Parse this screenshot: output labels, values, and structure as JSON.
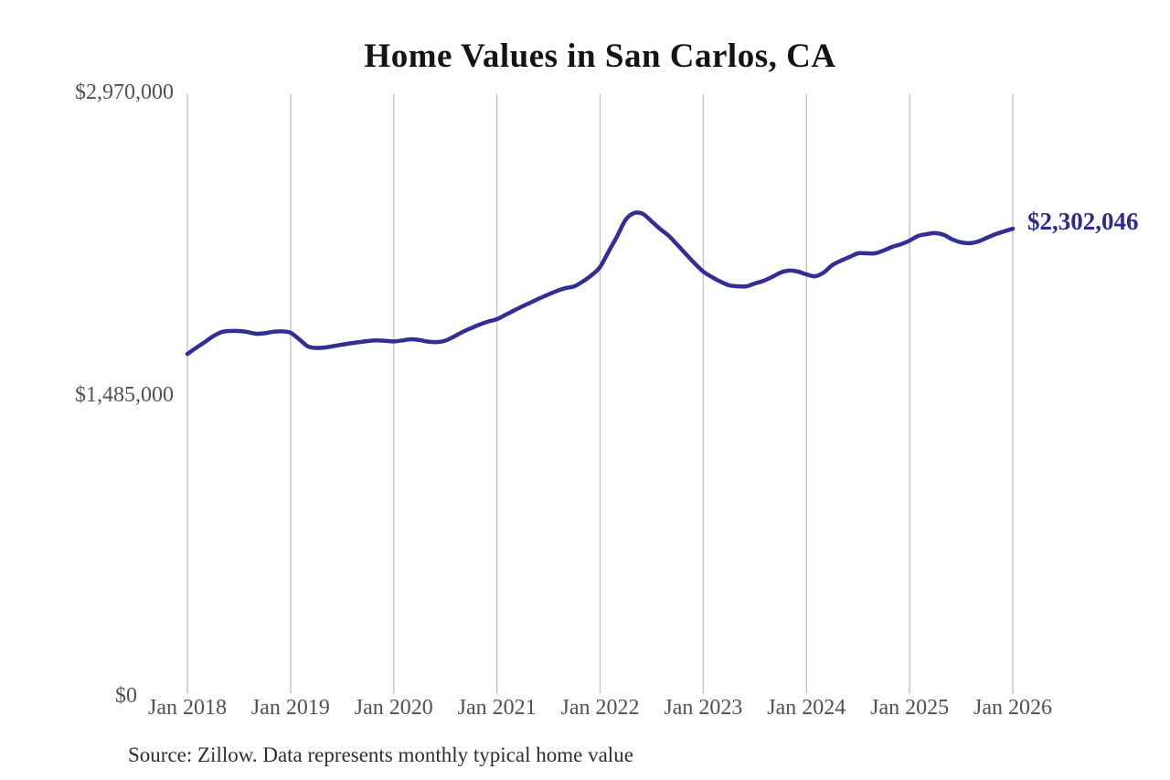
{
  "title": "Home Values in San Carlos, CA",
  "latest_value_label": "$2,302,046",
  "source_note": "Source: Zillow. Data represents monthly typical home value",
  "y_axis": {
    "labels": [
      "$2,970,000",
      "$1,485,000",
      "$0"
    ]
  },
  "x_axis": {
    "labels": [
      "Jan 2018",
      "Jan 2019",
      "Jan 2020",
      "Jan 2021",
      "Jan 2022",
      "Jan 2023",
      "Jan 2024",
      "Jan 2025",
      "Jan 2026"
    ]
  },
  "colors": {
    "line": "#332e96",
    "latest_label": "#2c2a90",
    "grid": "#c4c4c4",
    "axis_text": "#515151",
    "title_text": "#141414",
    "source_text": "#2e2e2e"
  },
  "chart_data": {
    "type": "line",
    "title": "Home Values in San Carlos, CA",
    "series_name": "Monthly typical home value (Zillow)",
    "x_start": "Jan 2018",
    "x_end": "Jan 2026",
    "x_interval": "month",
    "x_tick_labels": [
      "Jan 2018",
      "Jan 2019",
      "Jan 2020",
      "Jan 2021",
      "Jan 2022",
      "Jan 2023",
      "Jan 2024",
      "Jan 2025",
      "Jan 2026"
    ],
    "ylim": [
      0,
      2970000
    ],
    "y_tick_values": [
      0,
      1485000,
      2970000
    ],
    "y_tick_labels": [
      "$0",
      "$1,485,000",
      "$2,970,000"
    ],
    "grid": "vertical-only",
    "legend": "none",
    "latest_value": 2302046,
    "latest_value_label": "$2,302,046",
    "values": [
      1680000,
      1710000,
      1738000,
      1768000,
      1789000,
      1794000,
      1794000,
      1789000,
      1780000,
      1783000,
      1790000,
      1792000,
      1785000,
      1753000,
      1718000,
      1710000,
      1712000,
      1719000,
      1726000,
      1733000,
      1739000,
      1744000,
      1747000,
      1745000,
      1742000,
      1747000,
      1753000,
      1749000,
      1741000,
      1739000,
      1746000,
      1766000,
      1789000,
      1808000,
      1826000,
      1841000,
      1853000,
      1874000,
      1896000,
      1917000,
      1937000,
      1957000,
      1976000,
      1993000,
      2007000,
      2016000,
      2040000,
      2071000,
      2112000,
      2189000,
      2266000,
      2348000,
      2380000,
      2375000,
      2338000,
      2300000,
      2266000,
      2221000,
      2175000,
      2130000,
      2089000,
      2062000,
      2039000,
      2021000,
      2016000,
      2016000,
      2030000,
      2043000,
      2062000,
      2084000,
      2094000,
      2089000,
      2075000,
      2066000,
      2084000,
      2121000,
      2143000,
      2161000,
      2180000,
      2180000,
      2180000,
      2194000,
      2212000,
      2225000,
      2243000,
      2266000,
      2275000,
      2280000,
      2271000,
      2248000,
      2234000,
      2230000,
      2239000,
      2257000,
      2275000,
      2289000,
      2302046
    ]
  }
}
